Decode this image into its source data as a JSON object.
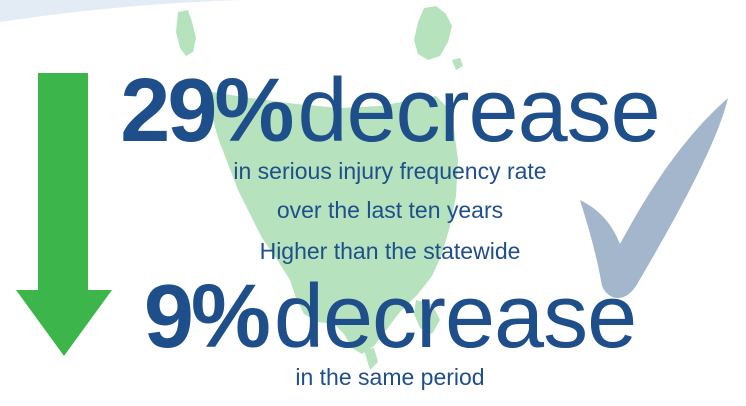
{
  "colors": {
    "navy": "#1f4f8b",
    "arrow_green": "#3cb54a",
    "map_green": "#b6e2bd",
    "check_blue": "#a3b6cc"
  },
  "icons": {
    "arrow": "down-arrow-icon",
    "check": "checkmark-icon",
    "map": "tasmania-map"
  },
  "headline_1": {
    "percent": "29%",
    "word": "decrease"
  },
  "subtext_1": {
    "line_1": "in serious injury frequency rate",
    "line_2": "over the last ten years",
    "line_3": "Higher than the statewide"
  },
  "headline_2": {
    "percent": "9%",
    "word": "decrease"
  },
  "subtext_2": {
    "line_1": "in the same period"
  }
}
